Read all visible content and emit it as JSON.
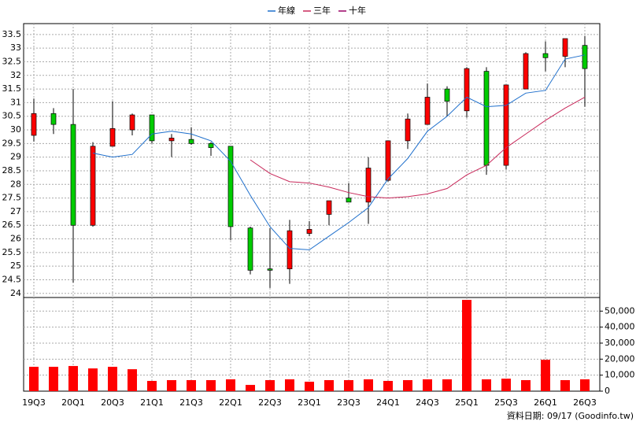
{
  "chart_data": {
    "type": "candlestick",
    "categories": [
      "19Q3",
      null,
      "20Q1",
      null,
      "20Q3",
      null,
      "21Q1",
      null,
      "21Q3",
      null,
      "22Q1",
      null,
      "22Q3",
      null,
      "23Q1",
      null,
      "23Q3",
      null,
      "24Q1",
      null,
      "24Q3",
      null,
      "25Q1",
      null,
      "25Q3",
      null,
      "26Q1",
      null,
      "26Q3"
    ],
    "open": [
      29.8,
      30.6,
      30.2,
      26.5,
      29.4,
      30.0,
      30.55,
      29.6,
      29.65,
      29.5,
      29.4,
      26.4,
      24.9,
      24.9,
      26.2,
      26.9,
      27.5,
      27.35,
      28.15,
      29.6,
      30.2,
      31.5,
      30.7,
      32.15,
      28.7,
      31.5,
      32.8,
      32.7,
      33.1
    ],
    "high": [
      31.15,
      30.8,
      31.5,
      29.55,
      31.05,
      30.6,
      30.55,
      29.85,
      30.1,
      29.55,
      29.4,
      26.45,
      26.4,
      26.7,
      26.65,
      27.4,
      28.05,
      29.0,
      29.6,
      30.6,
      31.7,
      31.6,
      32.3,
      32.3,
      31.65,
      32.85,
      33.25,
      33.35,
      33.45
    ],
    "low": [
      29.57,
      29.85,
      24.4,
      26.45,
      29.4,
      29.8,
      29.5,
      29.0,
      29.45,
      29.05,
      25.95,
      24.7,
      24.2,
      24.35,
      26.1,
      26.5,
      27.35,
      26.55,
      28.1,
      29.3,
      30.2,
      30.5,
      30.45,
      28.35,
      28.55,
      31.5,
      32.15,
      32.3,
      30.85
    ],
    "close": [
      30.6,
      30.2,
      26.5,
      29.4,
      30.05,
      30.55,
      29.6,
      29.7,
      29.5,
      29.35,
      26.45,
      24.85,
      24.85,
      26.3,
      26.35,
      27.4,
      27.35,
      28.6,
      29.6,
      30.4,
      31.2,
      31.05,
      32.25,
      28.7,
      31.65,
      32.8,
      32.65,
      33.35,
      32.25
    ],
    "up_color": "#ff0000",
    "down_color": "#00cc00",
    "ylim": [
      23.85,
      33.9
    ],
    "yticks": [
      24,
      24.5,
      25,
      25.5,
      26,
      26.5,
      27,
      27.5,
      28,
      28.5,
      29,
      29.5,
      30,
      30.5,
      31,
      31.5,
      32,
      32.5,
      33,
      33.5
    ],
    "grid": true,
    "series": [
      {
        "name": "年線",
        "color": "#1e6fcc",
        "values": [
          null,
          null,
          null,
          29.15,
          29.0,
          29.1,
          29.85,
          29.95,
          29.85,
          29.6,
          28.85,
          27.6,
          26.45,
          25.65,
          25.6,
          26.1,
          26.6,
          27.15,
          28.2,
          28.95,
          29.95,
          30.5,
          31.2,
          30.85,
          30.9,
          31.35,
          31.45,
          32.6,
          32.75
        ]
      },
      {
        "name": "三年",
        "color": "#c8285a",
        "values": [
          null,
          null,
          null,
          null,
          null,
          null,
          null,
          null,
          null,
          null,
          null,
          28.9,
          28.4,
          28.1,
          28.05,
          27.9,
          27.7,
          27.55,
          27.5,
          27.55,
          27.65,
          27.85,
          28.35,
          28.7,
          29.35,
          29.85,
          30.35,
          30.8,
          31.2
        ]
      },
      {
        "name": "十年",
        "color": "#990066",
        "values": [
          null,
          null,
          null,
          null,
          null,
          null,
          null,
          null,
          null,
          null,
          null,
          null,
          null,
          null,
          null,
          null,
          null,
          null,
          null,
          null,
          null,
          null,
          null,
          null,
          null,
          null,
          null,
          null,
          null
        ]
      }
    ],
    "volume": {
      "color": "#ff0000",
      "values": [
        15200,
        15200,
        15700,
        14200,
        15200,
        13700,
        6400,
        6900,
        6900,
        6900,
        7400,
        3900,
        6900,
        7400,
        5900,
        6900,
        6900,
        7400,
        6400,
        6900,
        7400,
        7400,
        57000,
        7400,
        7800,
        6900,
        19600,
        6900,
        7400
      ],
      "ylim": [
        0,
        58500
      ],
      "yticks": [
        0,
        {
          "value": 10000,
          "label": "10,000"
        },
        {
          "value": 20000,
          "label": "20,000"
        },
        {
          "value": 30000,
          "label": "30,000"
        },
        {
          "value": 40000,
          "label": "40,000"
        },
        {
          "value": 50000,
          "label": "50,000"
        }
      ]
    },
    "footer_note": "資料日期: 09/17 (Goodinfo.tw)"
  }
}
